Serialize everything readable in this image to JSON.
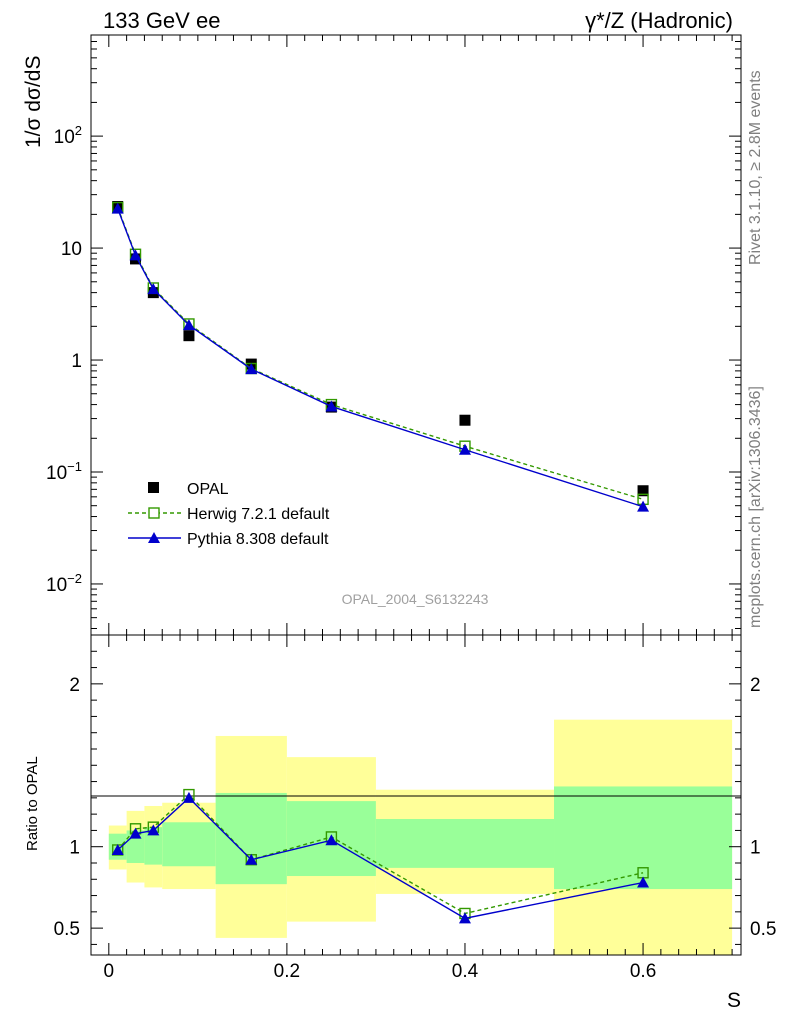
{
  "header": {
    "left_title": "133 GeV ee",
    "right_title": "γ*/Z (Hadronic)"
  },
  "side_labels": {
    "rivet": "Rivet 3.1.10, ≥ 2.8M events",
    "mcplots": "mcplots.cern.ch [arXiv:1306.3436]"
  },
  "colors": {
    "opal": "#000000",
    "herwig": "#339900",
    "pythia": "#0000cc",
    "band_inner": "#99ff99",
    "band_outer": "#ffff99",
    "watermark": "#a0a0a0",
    "side_text": "#7f7f7f"
  },
  "chart_data": [
    {
      "panel": "main",
      "type": "scatter",
      "yscale": "log",
      "xlim": [
        -0.02,
        0.71
      ],
      "ylim": [
        0.0035,
        800
      ],
      "ylabel": "1/σ dσ/dS",
      "watermark": "OPAL_2004_S6132243",
      "ytick_labels": [
        {
          "value": 0.01,
          "base": "10",
          "exp": "−2"
        },
        {
          "value": 0.1,
          "base": "10",
          "exp": "−1"
        },
        {
          "value": 1,
          "base": "1",
          "exp": ""
        },
        {
          "value": 10,
          "base": "10",
          "exp": ""
        },
        {
          "value": 100,
          "base": "10",
          "exp": "2"
        }
      ],
      "legend": [
        {
          "key": "opal",
          "label": "OPAL"
        },
        {
          "key": "herwig",
          "label": "Herwig 7.2.1 default"
        },
        {
          "key": "pythia",
          "label": "Pythia 8.308 default"
        }
      ],
      "series": [
        {
          "name": "OPAL",
          "key": "opal",
          "style": "square-filled",
          "x": [
            0.01,
            0.03,
            0.05,
            0.09,
            0.16,
            0.25,
            0.4,
            0.6
          ],
          "values": [
            23.5,
            8.0,
            4.0,
            1.65,
            0.92,
            0.38,
            0.29,
            0.068
          ]
        },
        {
          "name": "Herwig 7.2.1 default",
          "key": "herwig",
          "style": "square-open-dashed",
          "x": [
            0.01,
            0.03,
            0.05,
            0.09,
            0.16,
            0.25,
            0.4,
            0.6
          ],
          "values": [
            23.0,
            8.8,
            4.4,
            2.1,
            0.84,
            0.4,
            0.17,
            0.057
          ]
        },
        {
          "name": "Pythia 8.308 default",
          "key": "pythia",
          "style": "triangle-filled-solid",
          "x": [
            0.01,
            0.03,
            0.05,
            0.09,
            0.16,
            0.25,
            0.4,
            0.6
          ],
          "values": [
            22.5,
            8.6,
            4.3,
            2.05,
            0.83,
            0.385,
            0.158,
            0.049
          ]
        }
      ]
    },
    {
      "panel": "ratio",
      "type": "scatter",
      "xlim": [
        -0.02,
        0.71
      ],
      "ylim": [
        0.335,
        2.3
      ],
      "xlabel": "S",
      "ylabel": "Ratio to OPAL",
      "xtick_labels": [
        "0",
        "0.2",
        "0.4",
        "0.6"
      ],
      "xticks": [
        0,
        0.2,
        0.4,
        0.6
      ],
      "ytick_labels": [
        "0.5",
        "1",
        "2"
      ],
      "yticks": [
        0.5,
        1,
        2
      ],
      "bands": [
        {
          "x0": 0.0,
          "x1": 0.02,
          "inner": [
            0.92,
            1.08
          ],
          "outer": [
            0.86,
            1.13
          ]
        },
        {
          "x0": 0.02,
          "x1": 0.04,
          "inner": [
            0.9,
            1.1
          ],
          "outer": [
            0.78,
            1.22
          ]
        },
        {
          "x0": 0.04,
          "x1": 0.06,
          "inner": [
            0.89,
            1.12
          ],
          "outer": [
            0.75,
            1.25
          ]
        },
        {
          "x0": 0.06,
          "x1": 0.12,
          "inner": [
            0.88,
            1.15
          ],
          "outer": [
            0.74,
            1.27
          ]
        },
        {
          "x0": 0.12,
          "x1": 0.2,
          "inner": [
            0.77,
            1.33
          ],
          "outer": [
            0.44,
            1.68
          ]
        },
        {
          "x0": 0.2,
          "x1": 0.3,
          "inner": [
            0.82,
            1.28
          ],
          "outer": [
            0.54,
            1.55
          ]
        },
        {
          "x0": 0.3,
          "x1": 0.5,
          "inner": [
            0.87,
            1.17
          ],
          "outer": [
            0.71,
            1.35
          ]
        },
        {
          "x0": 0.5,
          "x1": 0.7,
          "inner": [
            0.74,
            1.37
          ],
          "outer": [
            0.33,
            1.78
          ]
        }
      ],
      "series": [
        {
          "name": "Herwig 7.2.1 default",
          "key": "herwig",
          "style": "square-open-dashed",
          "x": [
            0.01,
            0.03,
            0.05,
            0.09,
            0.16,
            0.25,
            0.4,
            0.6
          ],
          "values": [
            0.98,
            1.11,
            1.12,
            1.32,
            0.92,
            1.06,
            0.59,
            0.84
          ]
        },
        {
          "name": "Pythia 8.308 default",
          "key": "pythia",
          "style": "triangle-filled-solid",
          "x": [
            0.01,
            0.03,
            0.05,
            0.09,
            0.16,
            0.25,
            0.4,
            0.6
          ],
          "values": [
            0.98,
            1.08,
            1.1,
            1.3,
            0.92,
            1.04,
            0.56,
            0.78
          ]
        }
      ]
    }
  ]
}
